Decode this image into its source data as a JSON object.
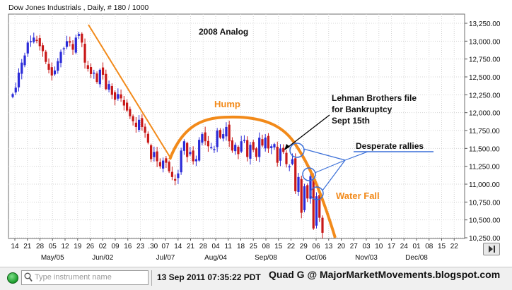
{
  "window": {
    "title": "Dow Jones Industrials , Daily, # 180 / 1000"
  },
  "toolbar": {
    "search_placeholder": "Type instrument name",
    "timestamp": "13 Sep 2011 07:35:22 PDT",
    "credit": "Quad G @ MajorMarketMovements.blogspot.com",
    "status_color": "#1a9b2b"
  },
  "chart_data": {
    "type": "candlestick",
    "title": "2008 Analog",
    "y_ticks": [
      "13,250.00",
      "13,000.00",
      "12,750.00",
      "12,500.00",
      "12,250.00",
      "12,000.00",
      "11,750.00",
      "11,500.00",
      "11,250.00",
      "11,000.00",
      "10,750.00",
      "10,500.00",
      "10,250.00"
    ],
    "y_tick_values": [
      13250,
      13000,
      12750,
      12500,
      12250,
      12000,
      11750,
      11500,
      11250,
      11000,
      10750,
      10500,
      10250
    ],
    "ylim": [
      10250,
      13400
    ],
    "x_day_labels": [
      "14",
      "21",
      "28",
      "05",
      "12",
      "19",
      "26",
      "02",
      "09",
      "16",
      "23",
      ".30",
      "07",
      "14",
      "21",
      "28",
      "04",
      "11",
      "18",
      "25",
      "08",
      "15",
      "22",
      "29",
      "06",
      "13",
      "20",
      "27",
      "03",
      "10",
      "17",
      "24",
      "01",
      "08",
      "15",
      "22"
    ],
    "x_month_labels": [
      {
        "label": "May/05",
        "day_index": 3
      },
      {
        "label": "Jun/02",
        "day_index": 7
      },
      {
        "label": "Jul/07",
        "day_index": 12
      },
      {
        "label": "Aug/04",
        "day_index": 16
      },
      {
        "label": "Sep/08",
        "day_index": 20
      },
      {
        "label": "Oct/06",
        "day_index": 24
      },
      {
        "label": "Nov/03",
        "day_index": 28
      },
      {
        "label": "Dec/08",
        "day_index": 32
      }
    ],
    "closes": [
      12260,
      12350,
      12560,
      12700,
      12800,
      12980,
      13000,
      13050,
      13010,
      12930,
      12860,
      12710,
      12600,
      12520,
      12590,
      12720,
      12850,
      12900,
      13000,
      12980,
      12880,
      13050,
      13100,
      12980,
      12700,
      12610,
      12540,
      12560,
      12430,
      12600,
      12530,
      12330,
      12400,
      12250,
      12180,
      12260,
      12200,
      12100,
      12030,
      11950,
      11880,
      11800,
      11900,
      11800,
      11720,
      11580,
      11350,
      11450,
      11320,
      11250,
      11330,
      11300,
      11180,
      11100,
      11050,
      11150,
      11470,
      11600,
      11380,
      11450,
      11320,
      11350,
      11620,
      11700,
      11600,
      11530,
      11520,
      11490,
      11750,
      11650,
      11700,
      11800,
      11600,
      11470,
      11550,
      11420,
      11600,
      11620,
      11380,
      11550,
      11480,
      11380,
      11650,
      11540,
      11650,
      11500,
      11530,
      11560,
      11300,
      11500,
      11450,
      11280,
      11250,
      11350,
      10900,
      11100,
      10600,
      10970,
      10800,
      11110,
      10380,
      10830,
      10530,
      10320
    ],
    "annotations": [
      {
        "text": "Hump",
        "color": "#f28a1a"
      },
      {
        "text": "Lehman Brothers file for Bankruptcy Sept 15th",
        "lines": [
          "Lehman Brothers file",
          "for Bankruptcy",
          "Sept 15th"
        ]
      },
      {
        "text": "Desperate rallies"
      },
      {
        "text": "Water Fall",
        "color": "#f28a1a"
      }
    ],
    "colors": {
      "up": "#2b2bd8",
      "down": "#c81818",
      "trendline": "#f28a1a",
      "arc": "#f28a1a",
      "circles": "#3a6fd8",
      "rally_lines": "#3a6fd8"
    },
    "grid": true
  }
}
